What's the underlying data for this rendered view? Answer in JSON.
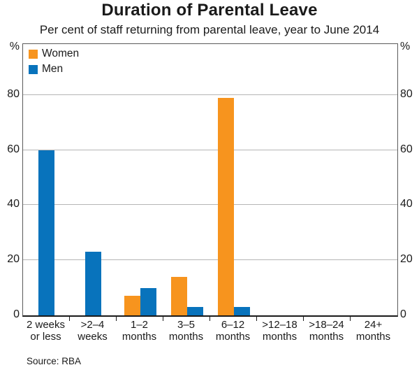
{
  "title": "Duration of Parental Leave",
  "subtitle": "Per cent of staff returning from parental leave, year to June 2014",
  "source": "Source: RBA",
  "axis_unit": "%",
  "colors": {
    "women": "#F7941E",
    "men": "#0873BC",
    "gridline": "#b5b5b5",
    "axis": "#1a1a1a"
  },
  "legend": [
    {
      "label": "Women",
      "color": "#F7941E"
    },
    {
      "label": "Men",
      "color": "#0873BC"
    }
  ],
  "chart_data": {
    "type": "bar",
    "title": "Duration of Parental Leave",
    "subtitle": "Per cent of staff returning from parental leave, year to June 2014",
    "categories": [
      "2 weeks\nor less",
      ">2–4\nweeks",
      "1–2\nmonths",
      "3–5\nmonths",
      "6–12\nmonths",
      ">12–18\nmonths",
      ">18–24\nmonths",
      "24+\nmonths"
    ],
    "series": [
      {
        "name": "Women",
        "color": "#F7941E",
        "values": [
          0,
          0,
          7,
          14,
          79,
          0,
          0,
          0
        ]
      },
      {
        "name": "Men",
        "color": "#0873BC",
        "values": [
          60,
          23,
          10,
          3,
          3,
          0,
          0,
          0
        ]
      }
    ],
    "ylabel": "%",
    "ylim": [
      0,
      98.5
    ],
    "yticks": [
      0,
      20,
      40,
      60,
      80
    ],
    "grid": true,
    "legend_position": "top-left",
    "source": "Source: RBA"
  }
}
